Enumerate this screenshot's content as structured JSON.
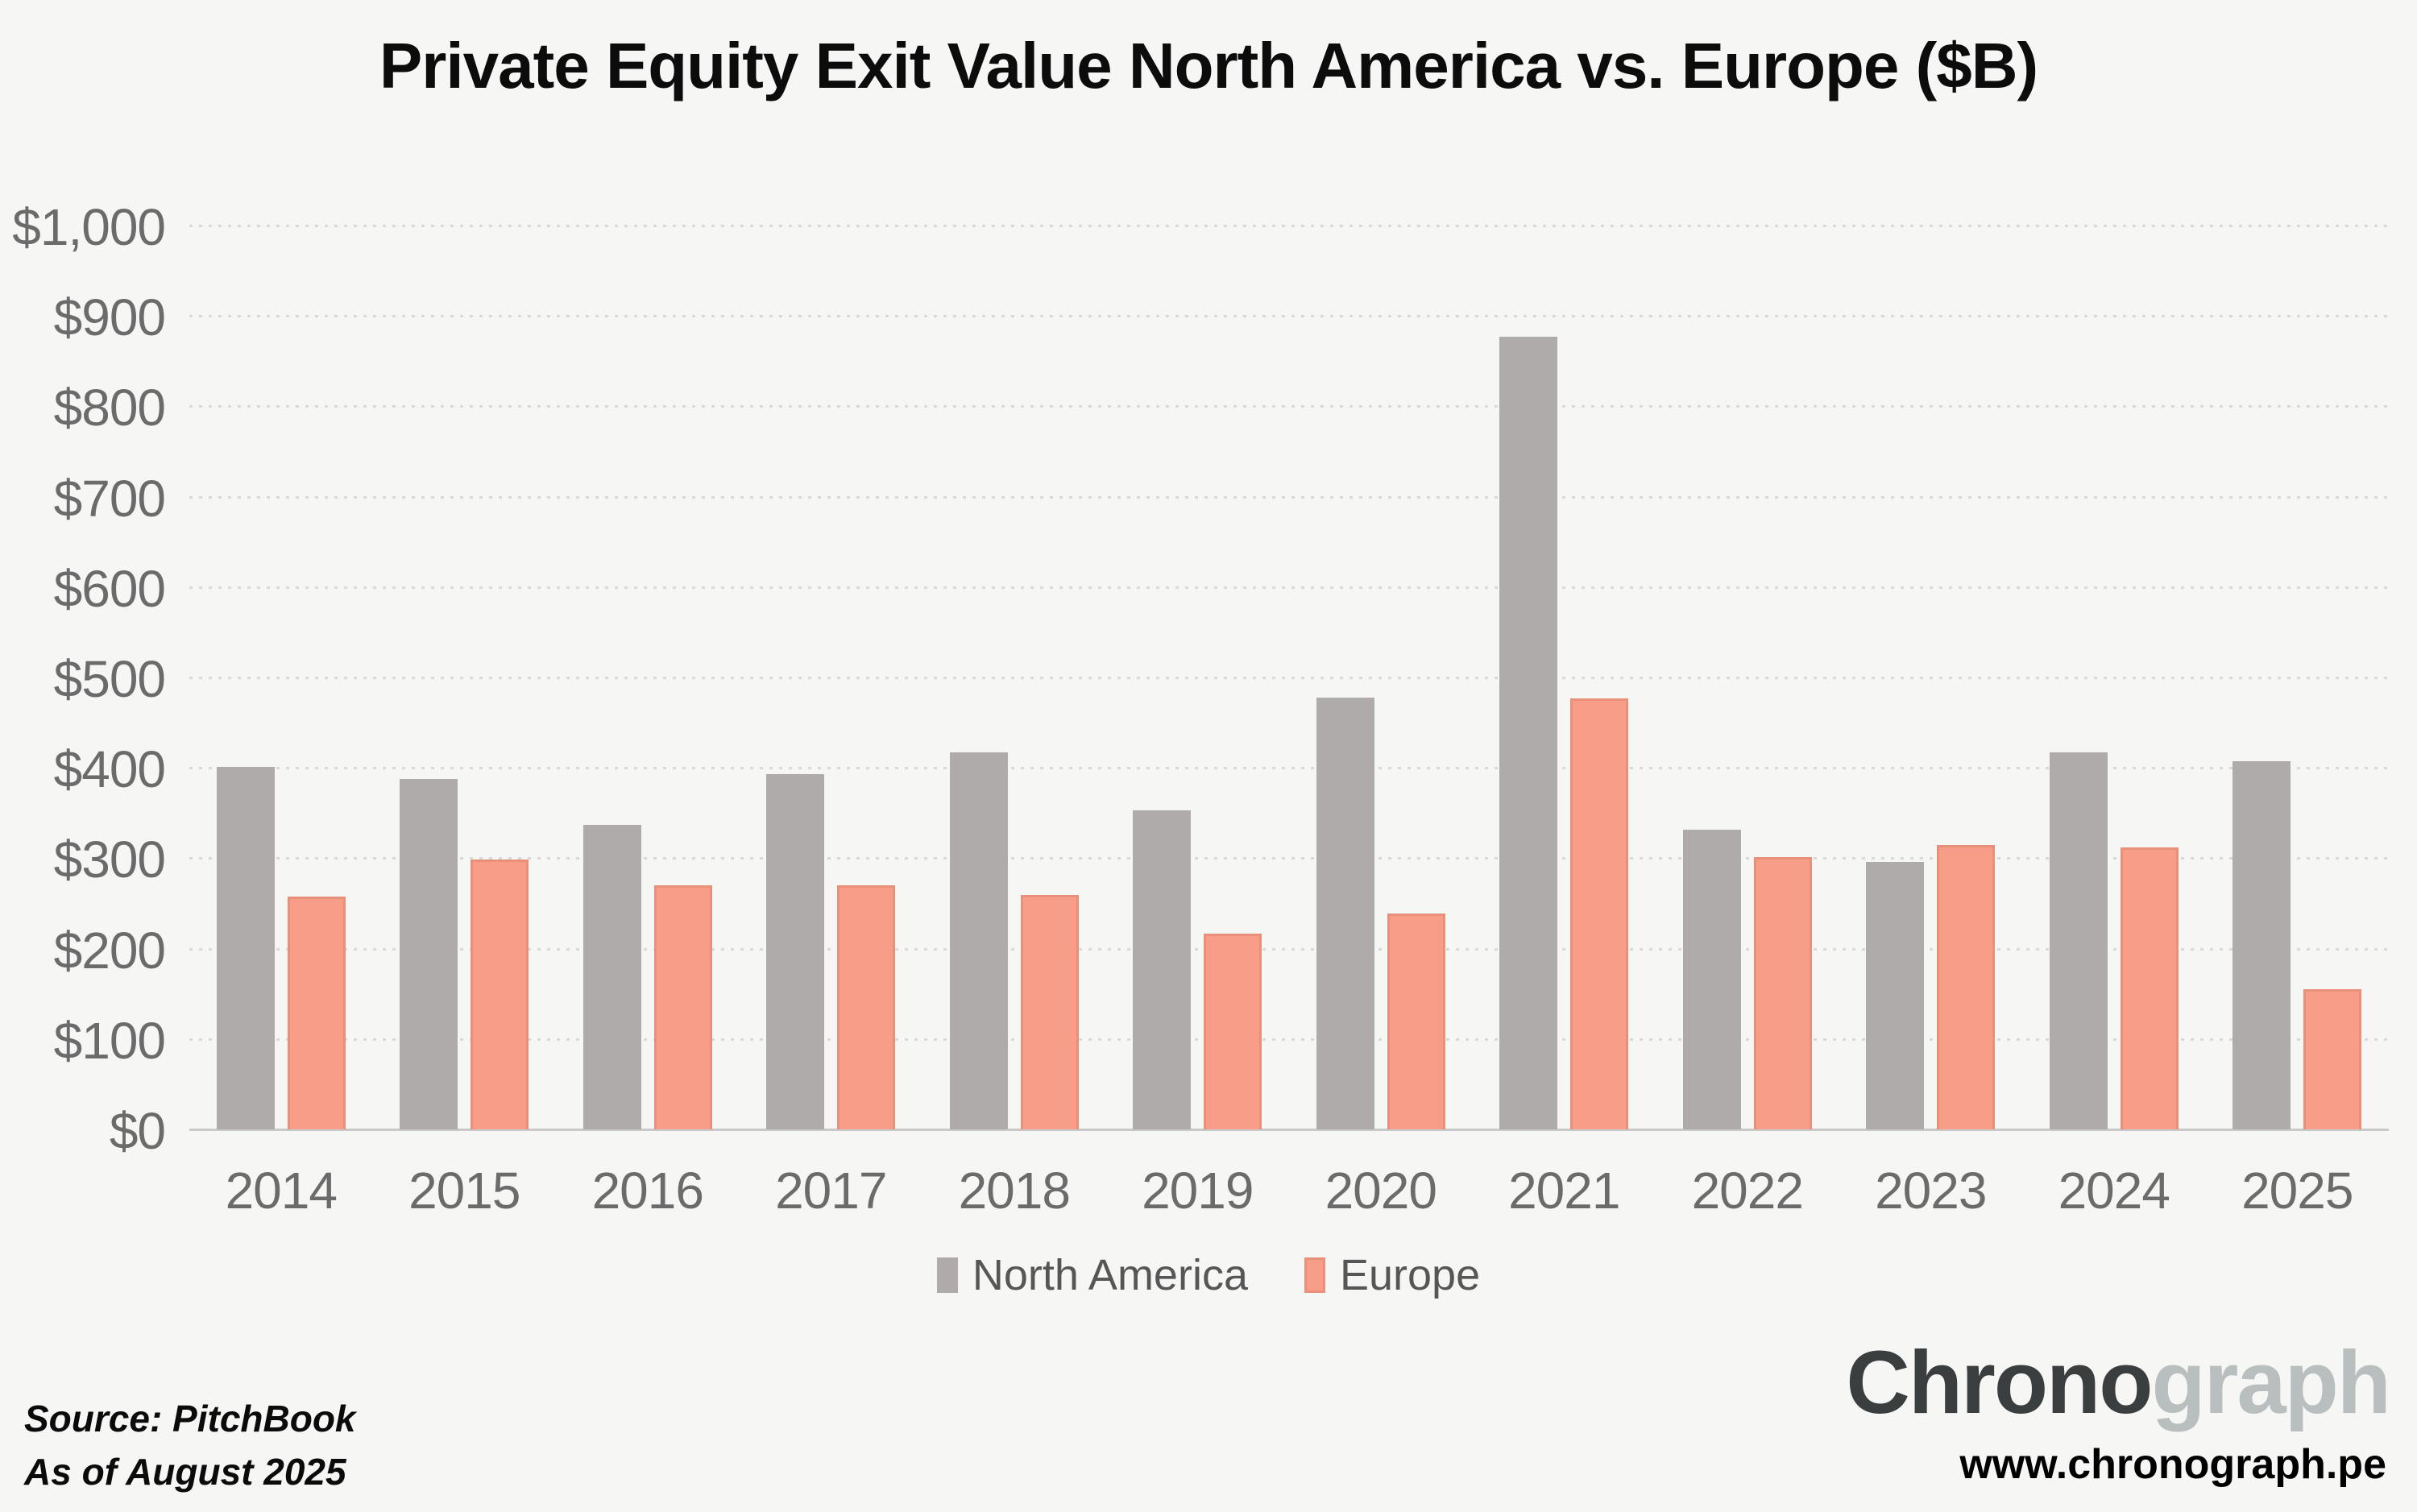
{
  "title": "Private Equity Exit Value North America vs. Europe ($B)",
  "chart_data": {
    "type": "bar",
    "title": "Private Equity Exit Value North America vs. Europe ($B)",
    "categories": [
      "2014",
      "2015",
      "2016",
      "2017",
      "2018",
      "2019",
      "2020",
      "2021",
      "2022",
      "2023",
      "2024",
      "2025"
    ],
    "series": [
      {
        "name": "North America",
        "color": "#aeabaa",
        "values": [
          401,
          388,
          337,
          393,
          417,
          353,
          478,
          877,
          332,
          296,
          417,
          407
        ]
      },
      {
        "name": "Europe",
        "color": "#f89e88",
        "border_color": "#e8907a",
        "values": [
          258,
          299,
          270,
          270,
          259,
          217,
          239,
          477,
          301,
          315,
          312,
          155
        ]
      }
    ],
    "xlabel": "",
    "ylabel": "",
    "ylim": [
      0,
      1000
    ],
    "y_ticks": [
      {
        "label": "$1,000",
        "value": 1000
      },
      {
        "label": "$900",
        "value": 900
      },
      {
        "label": "$800",
        "value": 800
      },
      {
        "label": "$700",
        "value": 700
      },
      {
        "label": "$600",
        "value": 600
      },
      {
        "label": "$500",
        "value": 500
      },
      {
        "label": "$400",
        "value": 400
      },
      {
        "label": "$300",
        "value": 300
      },
      {
        "label": "$200",
        "value": 200
      },
      {
        "label": "$100",
        "value": 100
      },
      {
        "label": "$0",
        "value": 0
      }
    ],
    "grid": "horizontal-dashed",
    "legend_position": "bottom-center"
  },
  "legend": {
    "items": [
      {
        "label": "North America",
        "color": "#aeabaa"
      },
      {
        "label": "Europe",
        "color": "#f89e88"
      }
    ]
  },
  "footer": {
    "source_line1": "Source: PitchBook",
    "source_line2": "As of August 2025",
    "logo_dark": "Chrono",
    "logo_light": "graph",
    "website": "www.chronograph.pe"
  },
  "colors": {
    "background": "#f6f6f5",
    "north_america_bar": "#aeabaa",
    "europe_bar": "#f89e88",
    "europe_bar_border": "#e8907a",
    "gridline": "#d9d9d9",
    "axis_line": "#c9c9c9",
    "tick_text": "#6b6b6b",
    "legend_text": "#565656",
    "title_text": "#0c0c0c",
    "logo_dark": "#3a3e3f",
    "logo_light": "#b9bfbf"
  }
}
